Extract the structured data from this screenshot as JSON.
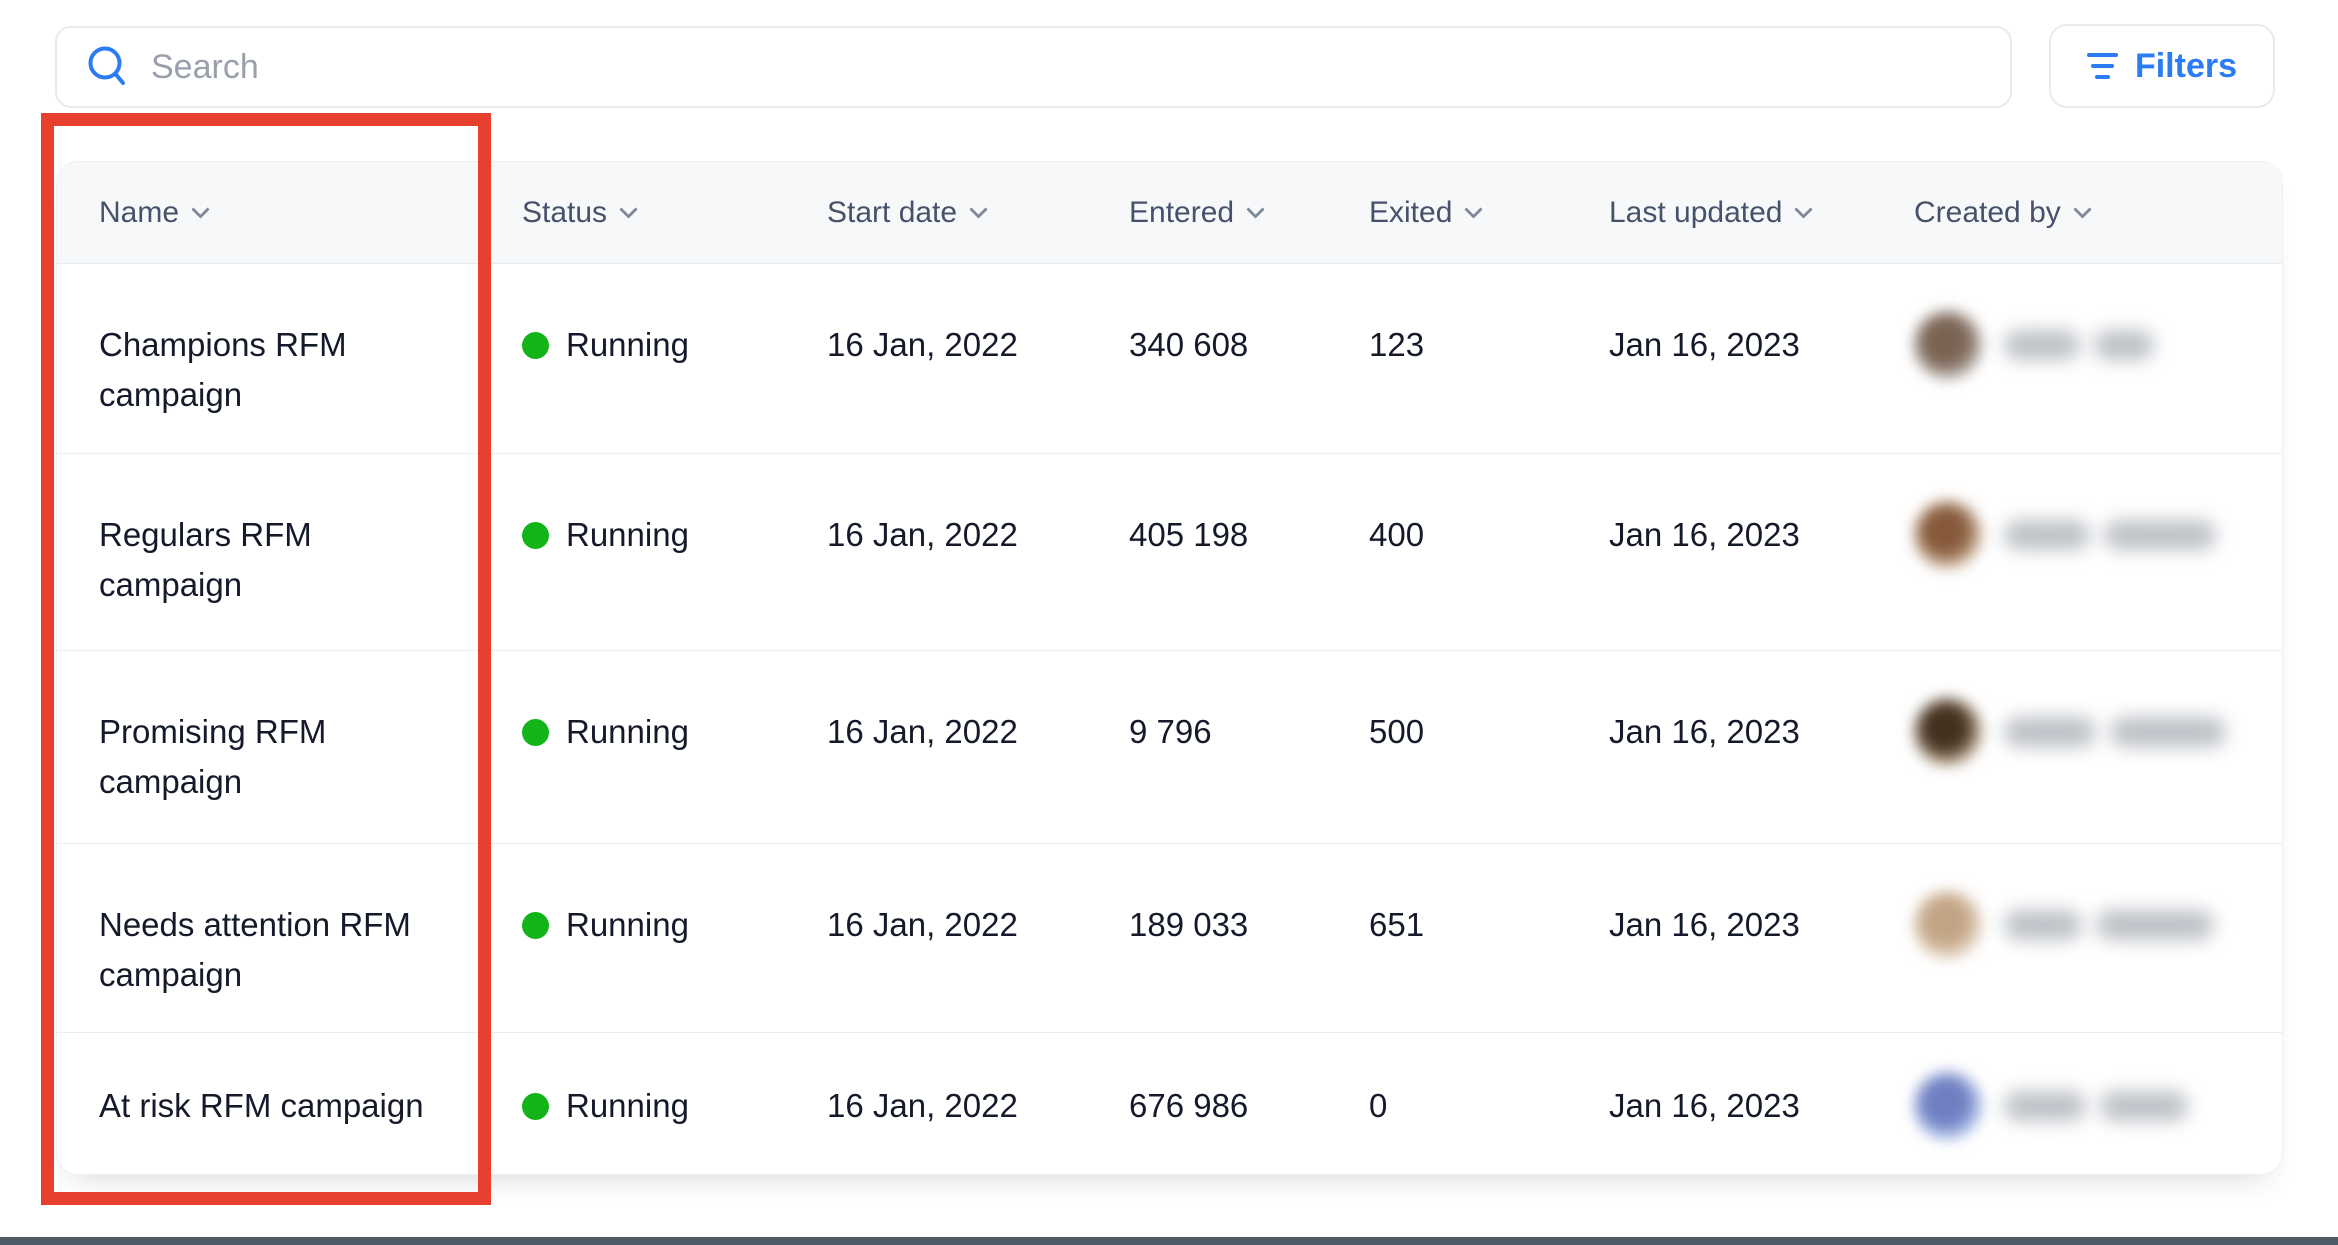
{
  "topbar": {
    "search": {
      "placeholder": "Search"
    },
    "filters_label": "Filters"
  },
  "colors": {
    "accent_blue": "#2b7bf4",
    "status_green": "#13b418",
    "annotation_red": "#e8402e",
    "bottom_bar": "#4d5c66"
  },
  "annotation": {
    "shape": "rectangle",
    "highlights": "Name column"
  },
  "table": {
    "columns": [
      "Name",
      "Status",
      "Start date",
      "Entered",
      "Exited",
      "Last updated",
      "Created by"
    ],
    "rows": [
      {
        "name": "Champions RFM campaign",
        "status": "Running",
        "start_date": "16 Jan, 2022",
        "entered": "340 608",
        "exited": "123",
        "last_updated": "Jan 16, 2023",
        "creator": {
          "name_blurred": true,
          "avatar_color": "#7a6352",
          "avatar_halo": "#b7b0ab",
          "blob_widths": [
            76,
            60
          ]
        }
      },
      {
        "name": "Regulars RFM campaign",
        "status": "Running",
        "start_date": "16 Jan, 2022",
        "entered": "405 198",
        "exited": "400",
        "last_updated": "Jan 16, 2023",
        "creator": {
          "name_blurred": true,
          "avatar_color": "#86593a",
          "avatar_halo": "#d9c3ab",
          "blob_widths": [
            86,
            112
          ]
        }
      },
      {
        "name": "Promising RFM campaign",
        "status": "Running",
        "start_date": "16 Jan, 2022",
        "entered": "9 796",
        "exited": "500",
        "last_updated": "Jan 16, 2023",
        "creator": {
          "name_blurred": true,
          "avatar_color": "#43301f",
          "avatar_halo": "#c9b59c",
          "blob_widths": [
            92,
            116
          ]
        }
      },
      {
        "name": "Needs attention RFM campaign",
        "status": "Running",
        "start_date": "16 Jan, 2022",
        "entered": "189 033",
        "exited": "651",
        "last_updated": "Jan 16, 2023",
        "creator": {
          "name_blurred": true,
          "avatar_color": "#c2a485",
          "avatar_halo": "#e8d8c6",
          "blob_widths": [
            78,
            118
          ]
        }
      },
      {
        "name": "At risk RFM campaign",
        "status": "Running",
        "start_date": "16 Jan, 2022",
        "entered": "676 986",
        "exited": "0",
        "last_updated": "Jan 16, 2023",
        "creator": {
          "name_blurred": true,
          "avatar_color": "#6e7ec1",
          "avatar_halo": "#b7c9f0",
          "blob_widths": [
            82,
            88
          ]
        }
      }
    ]
  }
}
